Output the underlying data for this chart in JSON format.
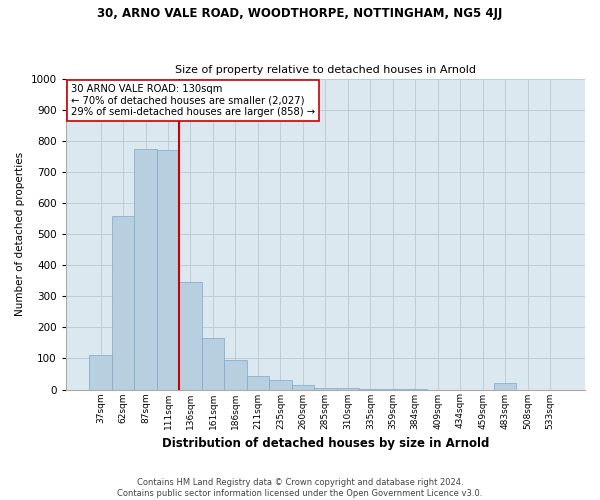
{
  "title1": "30, ARNO VALE ROAD, WOODTHORPE, NOTTINGHAM, NG5 4JJ",
  "title2": "Size of property relative to detached houses in Arnold",
  "xlabel": "Distribution of detached houses by size in Arnold",
  "ylabel": "Number of detached properties",
  "footer": "Contains HM Land Registry data © Crown copyright and database right 2024.\nContains public sector information licensed under the Open Government Licence v3.0.",
  "bins": [
    "37sqm",
    "62sqm",
    "87sqm",
    "111sqm",
    "136sqm",
    "161sqm",
    "186sqm",
    "211sqm",
    "235sqm",
    "260sqm",
    "285sqm",
    "310sqm",
    "335sqm",
    "359sqm",
    "384sqm",
    "409sqm",
    "434sqm",
    "459sqm",
    "483sqm",
    "508sqm",
    "533sqm"
  ],
  "values": [
    110,
    560,
    775,
    770,
    345,
    165,
    95,
    45,
    30,
    15,
    5,
    5,
    2,
    2,
    2,
    0,
    0,
    0,
    20,
    0,
    0
  ],
  "vline_bin_index": 4,
  "annotation_text": "30 ARNO VALE ROAD: 130sqm\n← 70% of detached houses are smaller (2,027)\n29% of semi-detached houses are larger (858) →",
  "bar_color": "#b8cfe0",
  "bar_edge_color": "#7aaac8",
  "vline_color": "#cc0000",
  "annotation_box_edge_color": "#cc0000",
  "background_color": "#ffffff",
  "ax_facecolor": "#dce8f0",
  "grid_color": "#c0cdd8",
  "ylim": [
    0,
    1000
  ],
  "yticks": [
    0,
    100,
    200,
    300,
    400,
    500,
    600,
    700,
    800,
    900,
    1000
  ]
}
